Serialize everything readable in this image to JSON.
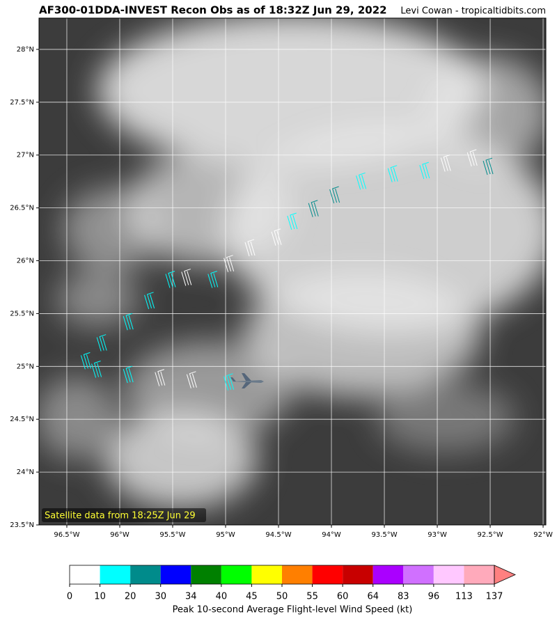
{
  "chart_data": {
    "type": "barbs",
    "title": "AF300-01DDA-INVEST Recon Obs as of 18:32Z Jun 29, 2022",
    "credit": "Levi Cowan - tropicaltidbits.com",
    "note": "Satellite data from 18:25Z Jun 29",
    "xlim": [
      -96.763,
      -91.974
    ],
    "ylim": [
      23.5,
      28.296
    ],
    "xticks": [
      {
        "value": -96.5,
        "label": "96.5°W"
      },
      {
        "value": -96,
        "label": "96°W"
      },
      {
        "value": -95.5,
        "label": "95.5°W"
      },
      {
        "value": -95,
        "label": "95°W"
      },
      {
        "value": -94.5,
        "label": "94.5°W"
      },
      {
        "value": -94,
        "label": "94°W"
      },
      {
        "value": -93.5,
        "label": "93.5°W"
      },
      {
        "value": -93,
        "label": "93°W"
      },
      {
        "value": -92.5,
        "label": "92.5°W"
      },
      {
        "value": -92,
        "label": "92°W"
      }
    ],
    "yticks": [
      {
        "value": 23.5,
        "label": "23.5°N"
      },
      {
        "value": 24,
        "label": "24°N"
      },
      {
        "value": 24.5,
        "label": "24.5°N"
      },
      {
        "value": 25,
        "label": "25°N"
      },
      {
        "value": 25.5,
        "label": "25.5°N"
      },
      {
        "value": 26,
        "label": "26°N"
      },
      {
        "value": 26.5,
        "label": "26.5°N"
      },
      {
        "value": 27,
        "label": "27°N"
      },
      {
        "value": 27.5,
        "label": "27.5°N"
      },
      {
        "value": 28,
        "label": "28°N"
      }
    ],
    "grid": true,
    "track": {
      "lon": [
        -94.95,
        -95.3,
        -95.6,
        -95.9,
        -96.2,
        -96.3,
        -96.15,
        -95.9,
        -95.7,
        -95.5,
        -95.35,
        -95.1,
        -94.95,
        -94.75,
        -94.5,
        -94.35,
        -94.15,
        -93.95,
        -93.7,
        -93.4,
        -93.1,
        -92.9,
        -92.65,
        -92.5
      ],
      "lat": [
        24.78,
        24.8,
        24.82,
        24.85,
        24.9,
        24.98,
        25.15,
        25.35,
        25.55,
        25.75,
        25.77,
        25.75,
        25.9,
        26.05,
        26.15,
        26.3,
        26.42,
        26.55,
        26.68,
        26.75,
        26.78,
        26.85,
        26.9,
        26.82
      ],
      "speed": [
        15,
        5,
        5,
        15,
        15,
        15,
        15,
        15,
        15,
        15,
        5,
        15,
        5,
        5,
        5,
        15,
        25,
        25,
        15,
        15,
        15,
        5,
        5,
        25
      ]
    },
    "colorbar": {
      "label": "Peak 10-second Average Flight-level Wind Speed (kt)",
      "levels": [
        0,
        10,
        20,
        30,
        34,
        40,
        45,
        50,
        55,
        60,
        64,
        83,
        96,
        113,
        137
      ],
      "colors": [
        "#ffffff",
        "#00ffff",
        "#008b8b",
        "#0000ff",
        "#008000",
        "#00ff00",
        "#ffff00",
        "#ff7f00",
        "#ff0000",
        "#c80000",
        "#aa00ff",
        "#d070ff",
        "#ffc8ff",
        "#ffaabb"
      ],
      "extend_color": "#ff8080"
    }
  }
}
